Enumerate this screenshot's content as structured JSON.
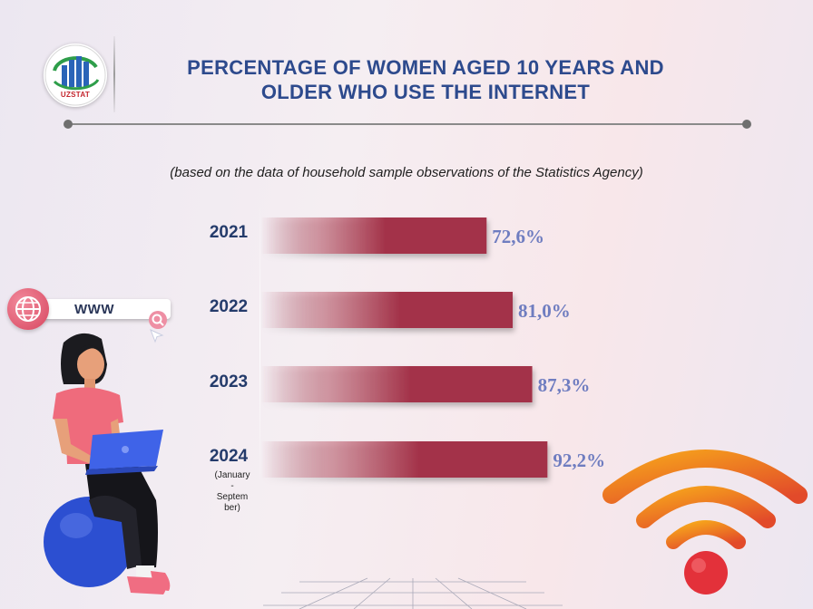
{
  "header": {
    "logo_text": "UZSTAT",
    "title_line1": "PERCENTAGE OF WOMEN AGED 10 YEARS AND",
    "title_line2": "OLDER WHO USE THE INTERNET",
    "subtitle": "(based on the data of household sample observations of the Statistics Agency)"
  },
  "search_widget": {
    "text": "WWW"
  },
  "chart_data": {
    "type": "bar",
    "orientation": "horizontal",
    "categories": [
      "2021",
      "2022",
      "2023",
      "2024"
    ],
    "category_notes": [
      "",
      "",
      "",
      "(January - September)"
    ],
    "values": [
      72.6,
      81.0,
      87.3,
      92.2
    ],
    "value_labels": [
      "72,6%",
      "81,0%",
      "87,3%",
      "92,2%"
    ],
    "unit": "%",
    "title": "PERCENTAGE OF WOMEN AGED 10 YEARS AND OLDER WHO USE THE INTERNET",
    "subtitle": "(based on the data of household sample observations of the Statistics Agency)",
    "xlabel": "",
    "ylabel": "",
    "grid": false,
    "legend": "none",
    "bar_color": "#a33349",
    "label_color": "#6f7dc0"
  },
  "colors": {
    "title": "#2d4a8d",
    "year_label": "#243b6b",
    "bar_dark": "#a33349"
  }
}
